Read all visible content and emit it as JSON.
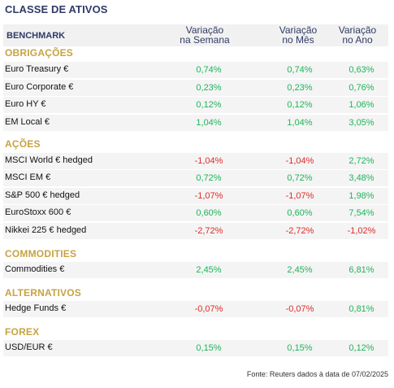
{
  "title": "CLASSE DE ATIVOS",
  "header": {
    "benchmark": "BENCHMARK",
    "col_week": "Variação\nna Semana",
    "col_month": "Variação\nno Mês",
    "col_year": "Variação\nno Ano"
  },
  "colors": {
    "positive": "#1db55a",
    "negative": "#e02a2a",
    "section": "#c6a343",
    "header": "#2f3b66"
  },
  "sections": [
    {
      "label": "OBRIGAÇÕES",
      "rows": [
        {
          "name": "Euro Treasury €",
          "week": "0,74%",
          "month": "0,74%",
          "year": "0,63%"
        },
        {
          "name": "Euro Corporate €",
          "week": "0,23%",
          "month": "0,23%",
          "year": "0,76%"
        },
        {
          "name": "Euro HY €",
          "week": "0,12%",
          "month": "0,12%",
          "year": "1,06%"
        },
        {
          "name": "EM Local €",
          "week": "1,04%",
          "month": "1,04%",
          "year": "3,05%"
        }
      ]
    },
    {
      "label": "AÇÕES",
      "rows": [
        {
          "name": "MSCI World € hedged",
          "week": "-1,04%",
          "month": "-1,04%",
          "year": "2,72%"
        },
        {
          "name": "MSCI EM €",
          "week": "0,72%",
          "month": "0,72%",
          "year": "3,48%"
        },
        {
          "name": "S&P 500 € hedged",
          "week": "-1,07%",
          "month": "-1,07%",
          "year": "1,98%"
        },
        {
          "name": "EuroStoxx 600 €",
          "week": "0,60%",
          "month": "0,60%",
          "year": "7,54%"
        },
        {
          "name": "Nikkei 225 € hedged",
          "week": "-2,72%",
          "month": "-2,72%",
          "year": "-1,02%"
        }
      ]
    },
    {
      "label": "COMMODITIES",
      "rows": [
        {
          "name": "Commodities €",
          "week": "2,45%",
          "month": "2,45%",
          "year": "6,81%"
        }
      ]
    },
    {
      "label": "ALTERNATIVOS",
      "rows": [
        {
          "name": "Hedge Funds €",
          "week": "-0,07%",
          "month": "-0,07%",
          "year": "0,81%"
        }
      ]
    },
    {
      "label": "FOREX",
      "rows": [
        {
          "name": "USD/EUR €",
          "week": "0,15%",
          "month": "0,15%",
          "year": "0,12%"
        }
      ]
    }
  ],
  "footer": "Fonte: Reuters dados à data de 07/02/2025"
}
